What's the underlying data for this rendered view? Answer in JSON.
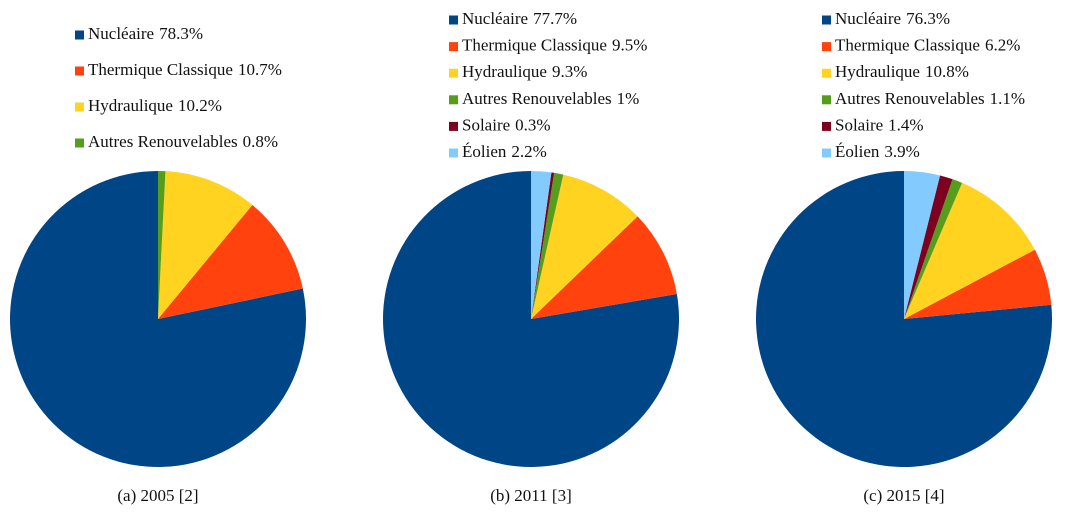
{
  "chart_data": [
    {
      "type": "pie",
      "caption": "(a) 2005 [2]",
      "categories": [
        "Nucléaire",
        "Thermique Classique",
        "Hydraulique",
        "Autres Renouvelables"
      ],
      "values": [
        78.3,
        10.7,
        10.2,
        0.8
      ],
      "value_labels": [
        "78.3%",
        "10.7%",
        "10.2%",
        "0.8%"
      ],
      "colors": [
        "#004586",
        "#ff420e",
        "#ffd320",
        "#579d1c"
      ]
    },
    {
      "type": "pie",
      "caption": "(b) 2011 [3]",
      "categories": [
        "Nucléaire",
        "Thermique Classique",
        "Hydraulique",
        "Autres Renouvelables",
        "Solaire",
        "Éolien"
      ],
      "values": [
        77.7,
        9.5,
        9.3,
        1,
        0.3,
        2.2
      ],
      "value_labels": [
        "77.7%",
        "9.5%",
        "9.3%",
        "1%",
        "0.3%",
        "2.2%"
      ],
      "colors": [
        "#004586",
        "#ff420e",
        "#ffd320",
        "#579d1c",
        "#7e0021",
        "#83caff"
      ]
    },
    {
      "type": "pie",
      "caption": "(c) 2015 [4]",
      "categories": [
        "Nucléaire",
        "Thermique Classique",
        "Hydraulique",
        "Autres Renouvelables",
        "Solaire",
        "Éolien"
      ],
      "values": [
        76.3,
        6.2,
        10.8,
        1.1,
        1.4,
        3.9
      ],
      "value_labels": [
        "76.3%",
        "6.2%",
        "10.8%",
        "1.1%",
        "1.4%",
        "3.9%"
      ],
      "colors": [
        "#004586",
        "#ff420e",
        "#ffd320",
        "#579d1c",
        "#7e0021",
        "#83caff"
      ]
    }
  ]
}
